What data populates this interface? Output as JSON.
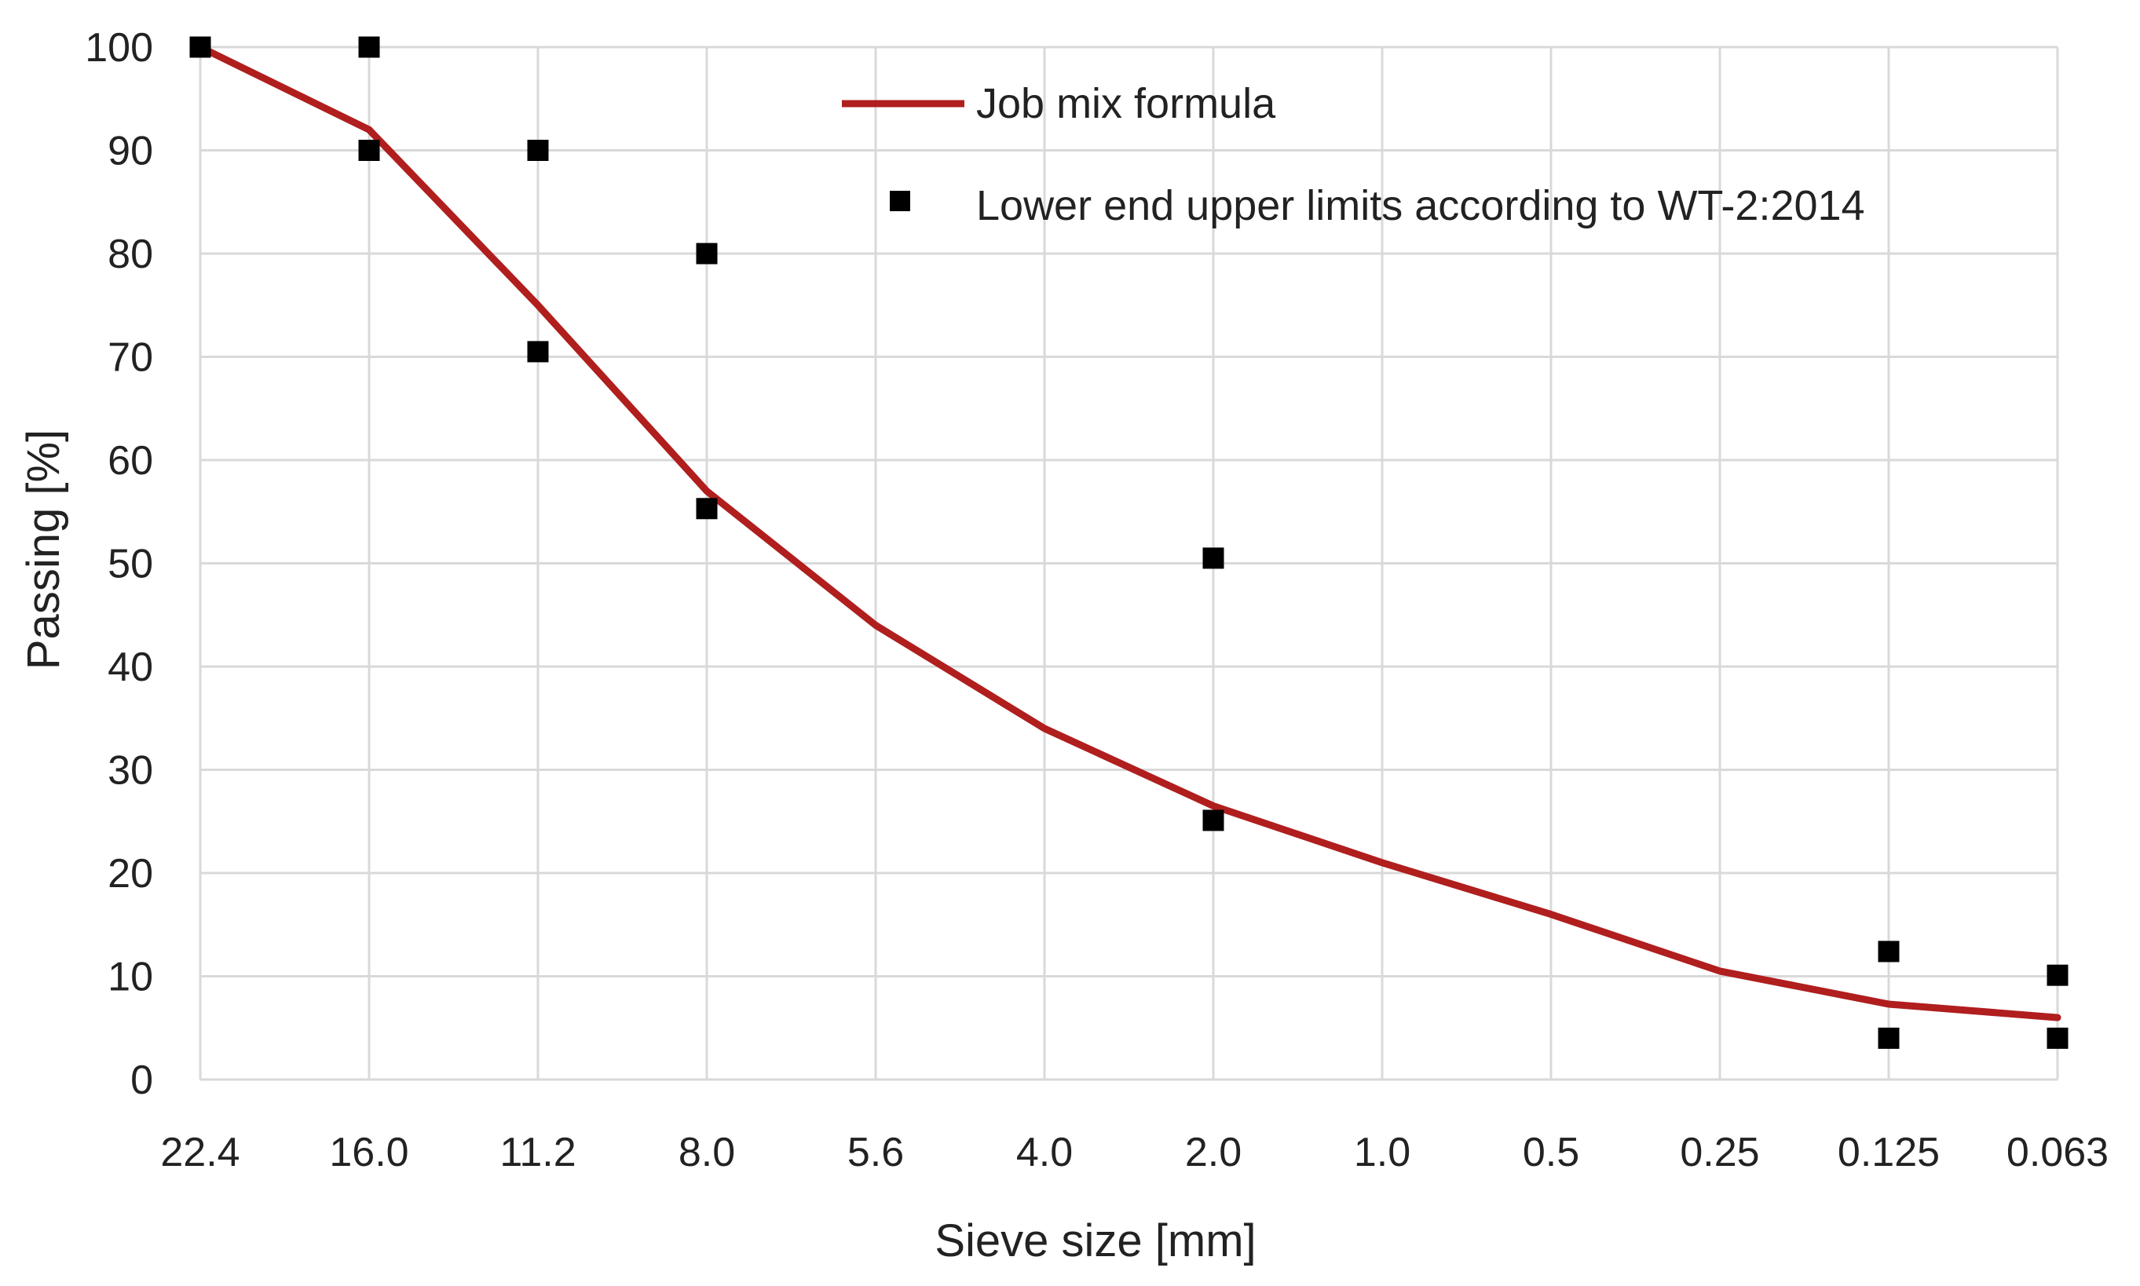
{
  "chart_data": {
    "type": "line",
    "title": "",
    "xlabel": "Sieve size [mm]",
    "ylabel": "Passing [%]",
    "categories": [
      "22.4",
      "16.0",
      "11.2",
      "8.0",
      "5.6",
      "4.0",
      "2.0",
      "1.0",
      "0.5",
      "0.25",
      "0.125",
      "0.063"
    ],
    "ylim": [
      0,
      100
    ],
    "yticks": [
      "0",
      "10",
      "20",
      "30",
      "40",
      "50",
      "60",
      "70",
      "80",
      "90",
      "100"
    ],
    "grid": true,
    "legend_position": "top-right",
    "series": [
      {
        "name": "Job mix formula",
        "kind": "line",
        "color": "#B01E1E",
        "values": [
          100,
          92,
          75,
          57,
          44,
          34,
          26.5,
          21,
          16,
          10.5,
          7.3,
          6
        ]
      },
      {
        "name": "Lower end upper limits according to WT-2:2014",
        "kind": "scatter",
        "color": "#000000",
        "points": [
          {
            "x": "22.4",
            "y": 100
          },
          {
            "x": "16.0",
            "y": 100
          },
          {
            "x": "16.0",
            "y": 90
          },
          {
            "x": "11.2",
            "y": 90
          },
          {
            "x": "11.2",
            "y": 70.5
          },
          {
            "x": "8.0",
            "y": 80
          },
          {
            "x": "8.0",
            "y": 55.3
          },
          {
            "x": "2.0",
            "y": 50.5
          },
          {
            "x": "2.0",
            "y": 25.1
          },
          {
            "x": "0.125",
            "y": 12.4
          },
          {
            "x": "0.125",
            "y": 4
          },
          {
            "x": "0.063",
            "y": 10.1
          },
          {
            "x": "0.063",
            "y": 4
          }
        ]
      }
    ]
  }
}
